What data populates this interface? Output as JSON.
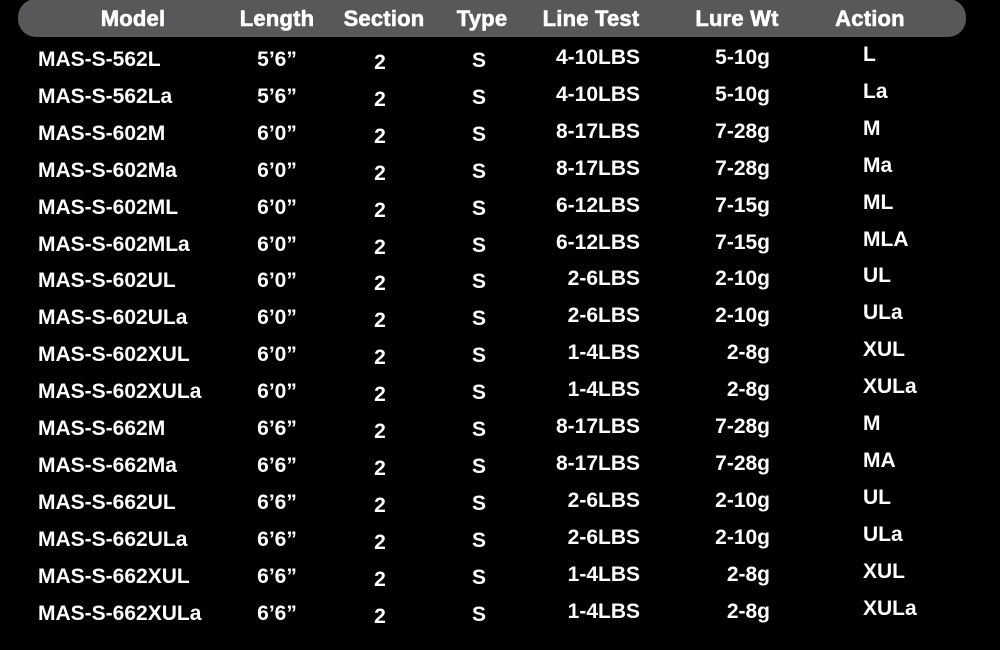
{
  "headers": [
    "Model",
    "Length",
    "Section",
    "Type",
    "Line Test",
    "Lure Wt",
    "Action"
  ],
  "rows": [
    [
      "MAS-S-562L",
      "5’6”",
      "2",
      "S",
      "4-10LBS",
      "5-10g",
      "L"
    ],
    [
      "MAS-S-562La",
      "5’6”",
      "2",
      "S",
      "4-10LBS",
      "5-10g",
      "La"
    ],
    [
      "MAS-S-602M",
      "6’0”",
      "2",
      "S",
      "8-17LBS",
      "7-28g",
      "M"
    ],
    [
      "MAS-S-602Ma",
      "6’0”",
      "2",
      "S",
      "8-17LBS",
      "7-28g",
      "Ma"
    ],
    [
      "MAS-S-602ML",
      "6’0”",
      "2",
      "S",
      "6-12LBS",
      "7-15g",
      "ML"
    ],
    [
      "MAS-S-602MLa",
      "6’0”",
      "2",
      "S",
      "6-12LBS",
      "7-15g",
      "MLA"
    ],
    [
      "MAS-S-602UL",
      "6’0”",
      "2",
      "S",
      "2-6LBS",
      "2-10g",
      "UL"
    ],
    [
      "MAS-S-602ULa",
      "6’0”",
      "2",
      "S",
      "2-6LBS",
      "2-10g",
      "ULa"
    ],
    [
      "MAS-S-602XUL",
      "6’0”",
      "2",
      "S",
      "1-4LBS",
      "2-8g",
      "XUL"
    ],
    [
      "MAS-S-602XULa",
      "6’0”",
      "2",
      "S",
      "1-4LBS",
      "2-8g",
      "XULa"
    ],
    [
      "MAS-S-662M",
      "6’6”",
      "2",
      "S",
      "8-17LBS",
      "7-28g",
      "M"
    ],
    [
      "MAS-S-662Ma",
      "6’6”",
      "2",
      "S",
      "8-17LBS",
      "7-28g",
      "MA"
    ],
    [
      "MAS-S-662UL",
      "6’6”",
      "2",
      "S",
      "2-6LBS",
      "2-10g",
      "UL"
    ],
    [
      "MAS-S-662ULa",
      "6’6”",
      "2",
      "S",
      "2-6LBS",
      "2-10g",
      "ULa"
    ],
    [
      "MAS-S-662XUL",
      "6’6”",
      "2",
      "S",
      "1-4LBS",
      "2-8g",
      "XUL"
    ],
    [
      "MAS-S-662XULa",
      "6’6”",
      "2",
      "S",
      "1-4LBS",
      "2-8g",
      "XULa"
    ]
  ],
  "colors": {
    "header_bar": "#58585a",
    "background": "#000000",
    "text": "#ffffff"
  }
}
